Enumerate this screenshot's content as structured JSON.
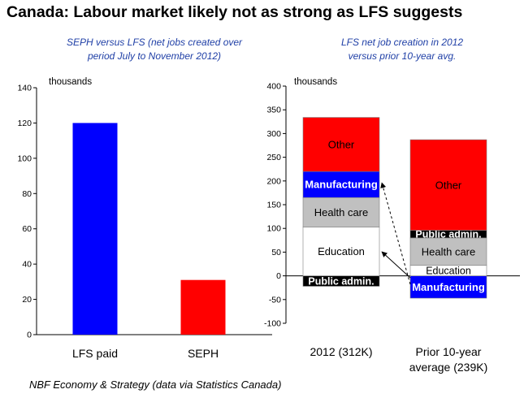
{
  "title": "Canada: Labour market likely not as strong as LFS suggests",
  "source": "NBF Economy & Strategy (data via Statistics Canada)",
  "chart_data": [
    {
      "type": "bar",
      "subtitle_lines": [
        "SEPH versus LFS (net jobs created over",
        "period July to November 2012)"
      ],
      "unit_label": "thousands",
      "categories": [
        "LFS paid",
        "SEPH"
      ],
      "values": [
        120,
        31
      ],
      "colors": [
        "#0000ff",
        "#ff0000"
      ],
      "ylim": [
        0,
        140
      ],
      "yticks": [
        0,
        20,
        40,
        60,
        80,
        100,
        120,
        140
      ],
      "grid": false
    },
    {
      "type": "bar",
      "stacked": true,
      "subtitle_lines": [
        "LFS net job creation in 2012",
        "versus prior 10-year avg."
      ],
      "unit_label": "thousands",
      "categories": [
        [
          "2012 (312K)"
        ],
        [
          "Prior 10-year",
          "average (239K)"
        ]
      ],
      "ylim": [
        -100,
        400
      ],
      "yticks": [
        -100,
        -50,
        0,
        50,
        100,
        150,
        200,
        250,
        300,
        350,
        400
      ],
      "grid": false,
      "segments": [
        [
          {
            "label": "Public admin.",
            "from": -22,
            "to": 0,
            "color": "#000000",
            "text_color": "#ffffff"
          },
          {
            "label": "Education",
            "from": 0,
            "to": 103,
            "color": "#ffffff",
            "text_color": "#000000"
          },
          {
            "label": "Health care",
            "from": 103,
            "to": 165,
            "color": "#c0c0c0",
            "text_color": "#000000"
          },
          {
            "label": "Manufacturing",
            "from": 165,
            "to": 220,
            "color": "#0000ff",
            "text_color": "#ffffff"
          },
          {
            "label": "Other",
            "from": 220,
            "to": 334,
            "color": "#ff0000",
            "text_color": "#000000"
          }
        ],
        [
          {
            "label": "Manufacturing",
            "from": -47,
            "to": 0,
            "color": "#0000ff",
            "text_color": "#ffffff"
          },
          {
            "label": "Education",
            "from": 0,
            "to": 22,
            "color": "#ffffff",
            "text_color": "#000000"
          },
          {
            "label": "Health care",
            "from": 22,
            "to": 80,
            "color": "#c0c0c0",
            "text_color": "#000000"
          },
          {
            "label": "Public admin.",
            "from": 80,
            "to": 96,
            "color": "#000000",
            "text_color": "#ffffff"
          },
          {
            "label": "Other",
            "from": 96,
            "to": 287,
            "color": "#ff0000",
            "text_color": "#000000"
          }
        ]
      ]
    }
  ]
}
